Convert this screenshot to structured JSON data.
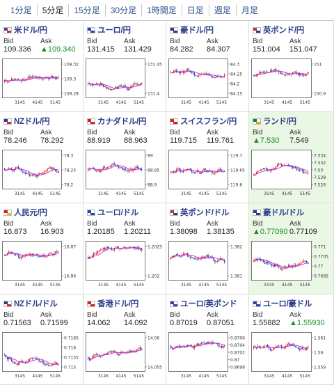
{
  "tabs": [
    "1分足",
    "5分足",
    "15分足",
    "30分足",
    "1時間足",
    "日足",
    "週足",
    "月足"
  ],
  "active_tab": 1,
  "labels": {
    "bid": "Bid",
    "ask": "Ask"
  },
  "colors": {
    "up_candle": "#d42020",
    "down_candle": "#2040c8",
    "ma_line": "#cc22cc",
    "accent_title": "#2b3f8c",
    "up_arrow": "#1a8a2a"
  },
  "pairs": [
    {
      "name": "米ドル/円",
      "icon": "us-flag-icon",
      "bid": "109.336",
      "ask": "▲109.340",
      "ask_up": true,
      "bid_up": false,
      "yticks": [
        "109.32",
        "109.3",
        "109.28"
      ],
      "xticks": [
        "3145",
        "4145",
        "5145"
      ]
    },
    {
      "name": "ユーロ/円",
      "icon": "eu-flag-icon",
      "bid": "131.415",
      "ask": "131.429",
      "yticks": [
        "131.45",
        "131.4"
      ],
      "xticks": [
        "3145",
        "4145",
        "5145"
      ]
    },
    {
      "name": "豪ドル/円",
      "icon": "au-flag-icon",
      "bid": "84.282",
      "ask": "84.307",
      "yticks": [
        "84.3",
        "84.25",
        "84.2",
        "84.15"
      ],
      "xticks": [
        "3145",
        "4145",
        "5145"
      ]
    },
    {
      "name": "英ポンド/円",
      "icon": "gb-flag-icon",
      "bid": "151.004",
      "ask": "151.047",
      "yticks": [
        "151",
        "150.9"
      ],
      "xticks": [
        "3145",
        "4145",
        "5145"
      ]
    },
    {
      "name": "NZドル/円",
      "icon": "nz-flag-icon",
      "bid": "78.246",
      "ask": "78.292",
      "yticks": [
        "78.3",
        "78.25",
        "78.2"
      ],
      "xticks": [
        "3145",
        "4145",
        "5145"
      ]
    },
    {
      "name": "カナダドル/円",
      "icon": "ca-flag-icon",
      "bid": "88.919",
      "ask": "88.963",
      "yticks": [
        "89",
        "88.95",
        "88.9"
      ],
      "xticks": [
        "3145",
        "4145",
        "5145"
      ]
    },
    {
      "name": "スイスフラン/円",
      "icon": "ch-flag-icon",
      "bid": "119.715",
      "ask": "119.761",
      "yticks": [
        "119.7",
        "119.65",
        "119.6"
      ],
      "xticks": [
        "3145",
        "4145",
        "5145"
      ]
    },
    {
      "name": "ランド/円",
      "icon": "za-flag-icon",
      "bid": "▲7.530",
      "ask": "7.549",
      "bid_up": true,
      "highlight": true,
      "yticks": [
        "7.534",
        "7.532",
        "7.53",
        "7.528",
        "7.526"
      ],
      "xticks": [
        "3145",
        "4145",
        "5145"
      ]
    },
    {
      "name": "人民元/円",
      "icon": "cn-flag-icon",
      "bid": "16.873",
      "ask": "16.903",
      "yticks": [
        "16.87",
        "16.86"
      ],
      "xticks": [
        "3145",
        "4145",
        "5145"
      ]
    },
    {
      "name": "ユーロ/ドル",
      "icon": "eu-flag-icon",
      "bid": "1.20185",
      "ask": "1.20211",
      "yticks": [
        "1.2025",
        "1.202"
      ],
      "xticks": [
        "3145",
        "4145",
        "5145"
      ]
    },
    {
      "name": "英ポンド/ドル",
      "icon": "gb-flag-icon",
      "bid": "1.38098",
      "ask": "1.38135",
      "yticks": [
        "1.382",
        "1.381"
      ],
      "xticks": [
        "3145",
        "4145",
        "5145"
      ]
    },
    {
      "name": "豪ドル/ドル",
      "icon": "au-flag-icon",
      "bid": "▲0.77090",
      "ask": "0.77109",
      "bid_up": true,
      "highlight": true,
      "yticks": [
        "0.771",
        "0.7705",
        "0.77",
        "0.7695"
      ],
      "xticks": [
        "3145",
        "4145",
        "5145"
      ]
    },
    {
      "name": "NZドル/ドル",
      "icon": "nz-flag-icon",
      "bid": "0.71563",
      "ask": "0.71599",
      "yticks": [
        "0.7165",
        "0.716",
        "0.7155",
        "0.715"
      ],
      "xticks": [
        "3145",
        "4145",
        "5145"
      ]
    },
    {
      "name": "香港ドル/円",
      "icon": "hk-flag-icon",
      "bid": "14.062",
      "ask": "14.092",
      "yticks": [
        "14.06",
        "14.055"
      ],
      "xticks": [
        "3145",
        "4145",
        "5145"
      ]
    },
    {
      "name": "ユーロ/英ポンド",
      "icon": "eu-flag-icon",
      "bid": "0.87019",
      "ask": "0.87051",
      "yticks": [
        "0.8706",
        "0.8704",
        "0.8702",
        "0.87",
        "0.8698"
      ],
      "xticks": [
        "3145",
        "4145",
        "5145"
      ]
    },
    {
      "name": "ユーロ/豪ドル",
      "icon": "eu-flag-icon",
      "bid": "1.55882",
      "ask": "▲1.55930",
      "ask_up": true,
      "yticks": [
        "1.561",
        "1.56",
        "1.559"
      ],
      "xticks": [
        "3145",
        "4145",
        "5145"
      ]
    }
  ]
}
